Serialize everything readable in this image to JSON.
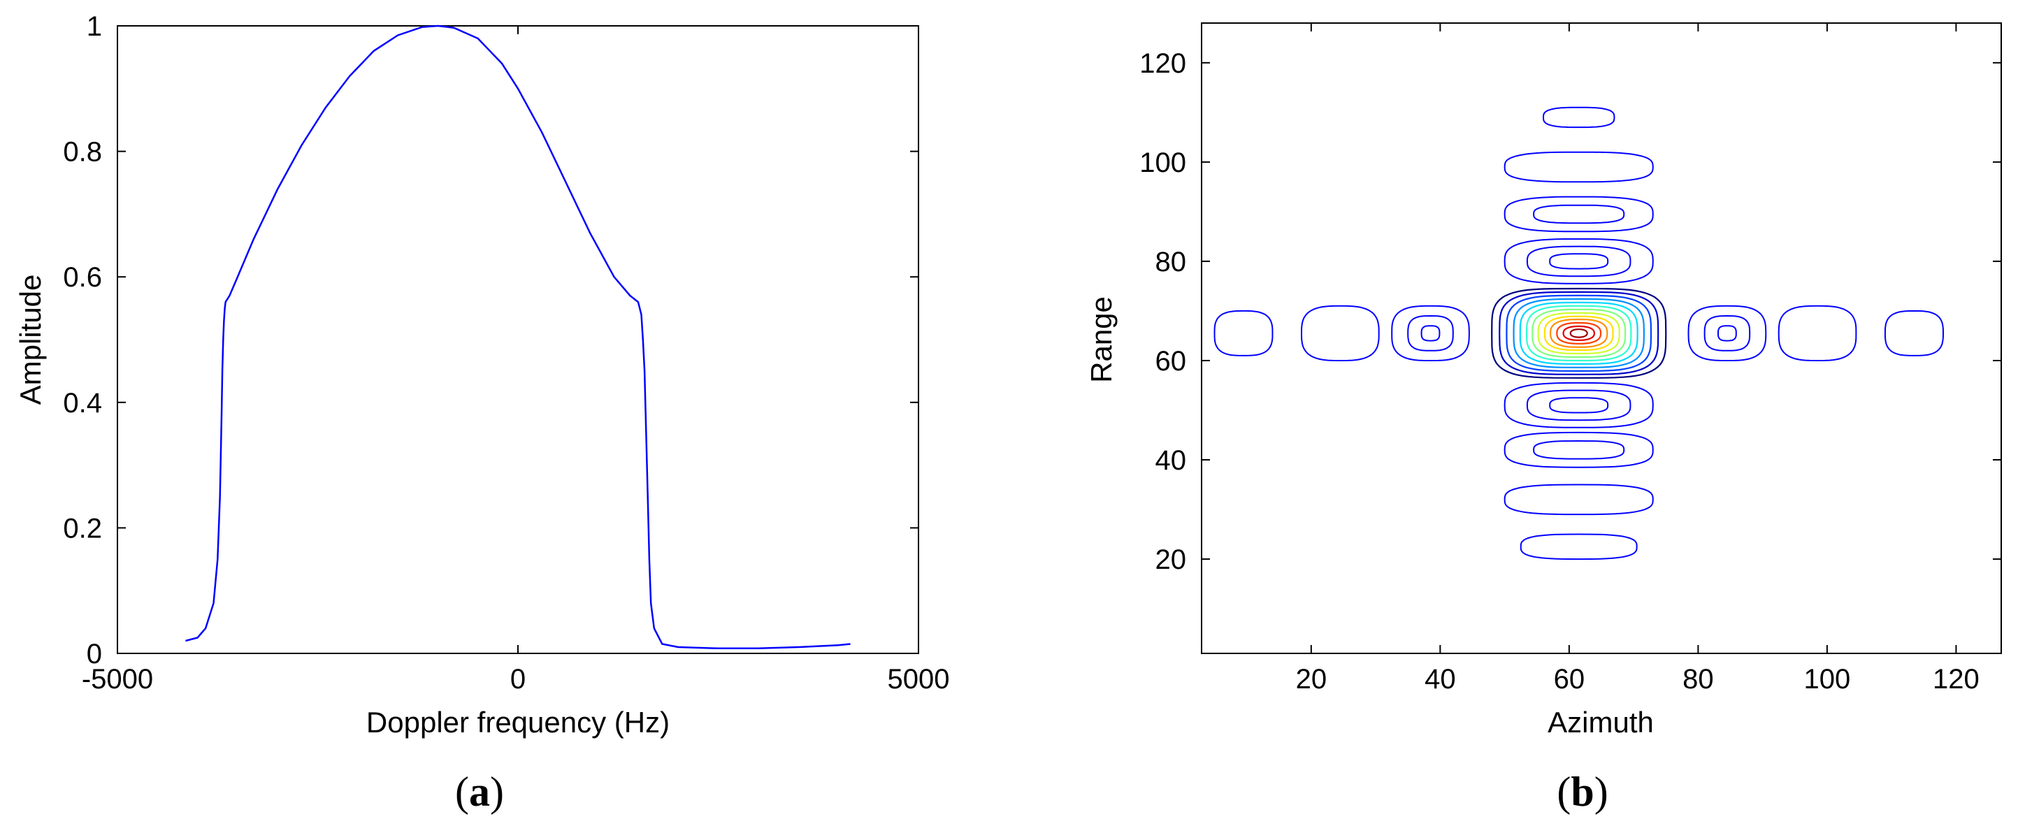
{
  "chart_data": [
    {
      "panel": "(a)",
      "type": "line",
      "xlabel": "Doppler frequency (Hz)",
      "ylabel": "Amplitude",
      "xlim": [
        -5000,
        5000
      ],
      "ylim": [
        0,
        1
      ],
      "xticks": [
        -5000,
        0,
        5000
      ],
      "xtick_labels": [
        "-5000",
        "0",
        "5000"
      ],
      "yticks": [
        0,
        0.2,
        0.4,
        0.6,
        0.8,
        1
      ],
      "ytick_labels": [
        "0",
        "0.2",
        "0.4",
        "0.6",
        "0.8",
        "1"
      ],
      "grid": false,
      "legend": "none",
      "color": "#0000ff",
      "series": [
        {
          "x": [
            -4150,
            -4000,
            -3900,
            -3800,
            -3750,
            -3720,
            -3700,
            -3690,
            -3680,
            -3670,
            -3660,
            -3650,
            -3600,
            -3500,
            -3300,
            -3000,
            -2700,
            -2400,
            -2100,
            -1800,
            -1500,
            -1200,
            -1000,
            -800,
            -500,
            -200,
            0,
            300,
            600,
            900,
            1200,
            1400,
            1500,
            1540,
            1560,
            1580,
            1600,
            1620,
            1640,
            1660,
            1700,
            1800,
            2000,
            2500,
            3000,
            3500,
            4000,
            4150
          ],
          "values": [
            0.02,
            0.025,
            0.04,
            0.08,
            0.15,
            0.25,
            0.38,
            0.45,
            0.5,
            0.53,
            0.55,
            0.56,
            0.57,
            0.6,
            0.66,
            0.74,
            0.81,
            0.87,
            0.92,
            0.96,
            0.985,
            0.998,
            1.0,
            0.997,
            0.98,
            0.94,
            0.9,
            0.83,
            0.75,
            0.67,
            0.6,
            0.57,
            0.56,
            0.54,
            0.5,
            0.45,
            0.35,
            0.25,
            0.15,
            0.08,
            0.04,
            0.015,
            0.01,
            0.008,
            0.008,
            0.01,
            0.013,
            0.015
          ]
        }
      ]
    },
    {
      "panel": "(b)",
      "type": "contour",
      "xlabel": "Azimuth",
      "ylabel": "Range",
      "xlim": [
        3,
        127
      ],
      "ylim": [
        1,
        128
      ],
      "xticks": [
        20,
        40,
        60,
        80,
        100,
        120
      ],
      "xtick_labels": [
        "20",
        "40",
        "60",
        "80",
        "100",
        "120"
      ],
      "yticks": [
        20,
        40,
        60,
        80,
        100,
        120
      ],
      "ytick_labels": [
        "20",
        "40",
        "60",
        "80",
        "100",
        "120"
      ],
      "grid": false,
      "legend": "none",
      "center": [
        61.5,
        65.5
      ],
      "mainlobe_levels": [
        {
          "level": 1,
          "rx": 13.5,
          "ry": 9.0,
          "color": "#00007f"
        },
        {
          "level": 2,
          "rx": 12.3,
          "ry": 8.3,
          "color": "#0000cc"
        },
        {
          "level": 3,
          "rx": 11.2,
          "ry": 7.6,
          "color": "#0040ff"
        },
        {
          "level": 4,
          "rx": 10.1,
          "ry": 6.9,
          "color": "#0090ff"
        },
        {
          "level": 5,
          "rx": 9.1,
          "ry": 6.2,
          "color": "#00d8ff"
        },
        {
          "level": 6,
          "rx": 8.1,
          "ry": 5.5,
          "color": "#30ffcf"
        },
        {
          "level": 7,
          "rx": 7.2,
          "ry": 4.8,
          "color": "#80ff80"
        },
        {
          "level": 8,
          "rx": 6.3,
          "ry": 4.1,
          "color": "#cfff30"
        },
        {
          "level": 9,
          "rx": 5.3,
          "ry": 3.4,
          "color": "#ffe000"
        },
        {
          "level": 10,
          "rx": 4.4,
          "ry": 2.8,
          "color": "#ff9000"
        },
        {
          "level": 11,
          "rx": 3.4,
          "ry": 2.1,
          "color": "#ff4000"
        },
        {
          "level": 12,
          "rx": 2.4,
          "ry": 1.4,
          "color": "#e00000"
        },
        {
          "level": 13,
          "rx": 1.3,
          "ry": 0.8,
          "color": "#9f0000"
        }
      ],
      "azimuth_sidelobes": [
        {
          "x": 9.5,
          "y": 65.5,
          "rx": 4.5,
          "ry": 4.5
        },
        {
          "x": 24.5,
          "y": 65.5,
          "rx": 6,
          "ry": 5.5
        },
        {
          "x": 38.5,
          "y": 65.5,
          "rx": 6,
          "ry": 5.5
        },
        {
          "x": 38.5,
          "y": 65.5,
          "rx": 3.5,
          "ry": 3.5
        },
        {
          "x": 38.5,
          "y": 65.5,
          "rx": 1.4,
          "ry": 1.5
        },
        {
          "x": 84.5,
          "y": 65.5,
          "rx": 6,
          "ry": 5.5
        },
        {
          "x": 84.5,
          "y": 65.5,
          "rx": 3.5,
          "ry": 3.5
        },
        {
          "x": 84.5,
          "y": 65.5,
          "rx": 1.4,
          "ry": 1.5
        },
        {
          "x": 98.5,
          "y": 65.5,
          "rx": 6,
          "ry": 5.5
        },
        {
          "x": 113.5,
          "y": 65.5,
          "rx": 4.5,
          "ry": 4.5
        }
      ],
      "range_sidelobes": [
        {
          "x": 61.5,
          "y": 109,
          "rx": 5.5,
          "ry": 2
        },
        {
          "x": 61.5,
          "y": 99,
          "rx": 11.5,
          "ry": 3
        },
        {
          "x": 61.5,
          "y": 89.5,
          "rx": 11.5,
          "ry": 3.5
        },
        {
          "x": 61.5,
          "y": 89.5,
          "rx": 7,
          "ry": 1.8
        },
        {
          "x": 61.5,
          "y": 80,
          "rx": 11.5,
          "ry": 4.5
        },
        {
          "x": 61.5,
          "y": 80,
          "rx": 8,
          "ry": 3
        },
        {
          "x": 61.5,
          "y": 80,
          "rx": 4.5,
          "ry": 1.5
        },
        {
          "x": 61.5,
          "y": 51,
          "rx": 11.5,
          "ry": 4.5
        },
        {
          "x": 61.5,
          "y": 51,
          "rx": 8,
          "ry": 3
        },
        {
          "x": 61.5,
          "y": 51,
          "rx": 4.5,
          "ry": 1.5
        },
        {
          "x": 61.5,
          "y": 42,
          "rx": 11.5,
          "ry": 3.5
        },
        {
          "x": 61.5,
          "y": 42,
          "rx": 7,
          "ry": 1.8
        },
        {
          "x": 61.5,
          "y": 32,
          "rx": 11.5,
          "ry": 3
        },
        {
          "x": 61.5,
          "y": 22.5,
          "rx": 9,
          "ry": 2.5
        }
      ],
      "sidelobe_color": "#0000ff"
    }
  ],
  "panels": {
    "a": {
      "label_open": "(",
      "label_letter": "a",
      "label_close": ")"
    },
    "b": {
      "label_open": "(",
      "label_letter": "b",
      "label_close": ")"
    }
  }
}
